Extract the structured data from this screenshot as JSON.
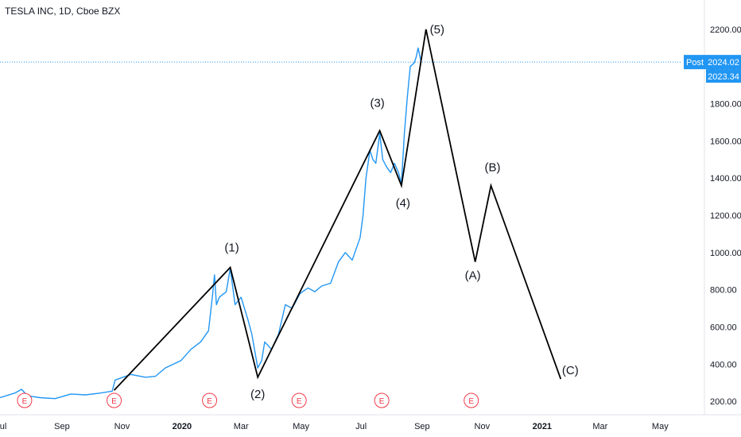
{
  "header": {
    "title": "TESLA INC, 1D, Cboe BZX"
  },
  "price_badges": {
    "post_label": "Post",
    "post_value": "2024.02",
    "last_value": "2023.34"
  },
  "earnings_marker_label": "E",
  "colors": {
    "price_line": "#2196f3",
    "wave_line": "#000000",
    "badge_bg": "#2196f3",
    "earnings": "#f23645"
  },
  "chart_data": {
    "type": "line",
    "y_axis_ticks": [
      "200.00",
      "400.00",
      "600.00",
      "800.00",
      "1000.00",
      "1200.00",
      "1400.00",
      "1600.00",
      "1800.00",
      "2000.00",
      "2200.00"
    ],
    "ylim": [
      60,
      2285
    ],
    "x_axis_ticks": [
      {
        "label": "Jul",
        "x": "2019-07-01"
      },
      {
        "label": "Sep",
        "x": "2019-09-01"
      },
      {
        "label": "Nov",
        "x": "2019-11-01"
      },
      {
        "label": "2020",
        "x": "2020-01-01"
      },
      {
        "label": "Mar",
        "x": "2020-03-01"
      },
      {
        "label": "May",
        "x": "2020-05-01"
      },
      {
        "label": "Jul",
        "x": "2020-07-01"
      },
      {
        "label": "Sep",
        "x": "2020-09-01"
      },
      {
        "label": "Nov",
        "x": "2020-11-01"
      },
      {
        "label": "2021",
        "x": "2021-01-01"
      },
      {
        "label": "Mar",
        "x": "2021-03-01"
      },
      {
        "label": "May",
        "x": "2021-05-01"
      }
    ],
    "xlim": [
      "2019-06-30",
      "2021-06-15"
    ],
    "series": [
      {
        "points": [
          [
            "2019-06-30",
            220
          ],
          [
            "2019-07-15",
            245
          ],
          [
            "2019-07-22",
            265
          ],
          [
            "2019-07-28",
            230
          ],
          [
            "2019-08-10",
            220
          ],
          [
            "2019-08-25",
            215
          ],
          [
            "2019-09-10",
            240
          ],
          [
            "2019-09-25",
            235
          ],
          [
            "2019-10-10",
            245
          ],
          [
            "2019-10-22",
            255
          ],
          [
            "2019-10-25",
            315
          ],
          [
            "2019-11-10",
            345
          ],
          [
            "2019-11-25",
            330
          ],
          [
            "2019-12-05",
            335
          ],
          [
            "2019-12-15",
            380
          ],
          [
            "2019-12-31",
            420
          ],
          [
            "2020-01-10",
            480
          ],
          [
            "2020-01-20",
            520
          ],
          [
            "2020-01-28",
            580
          ],
          [
            "2020-02-01",
            770
          ],
          [
            "2020-02-03",
            880
          ],
          [
            "2020-02-05",
            720
          ],
          [
            "2020-02-08",
            760
          ],
          [
            "2020-02-15",
            790
          ],
          [
            "2020-02-19",
            915
          ],
          [
            "2020-02-24",
            720
          ],
          [
            "2020-03-01",
            760
          ],
          [
            "2020-03-08",
            640
          ],
          [
            "2020-03-12",
            560
          ],
          [
            "2020-03-18",
            380
          ],
          [
            "2020-03-22",
            420
          ],
          [
            "2020-03-25",
            520
          ],
          [
            "2020-04-01",
            480
          ],
          [
            "2020-04-08",
            560
          ],
          [
            "2020-04-15",
            720
          ],
          [
            "2020-04-22",
            700
          ],
          [
            "2020-04-30",
            780
          ],
          [
            "2020-05-08",
            810
          ],
          [
            "2020-05-15",
            790
          ],
          [
            "2020-05-22",
            820
          ],
          [
            "2020-05-31",
            835
          ],
          [
            "2020-06-08",
            950
          ],
          [
            "2020-06-15",
            1000
          ],
          [
            "2020-06-22",
            960
          ],
          [
            "2020-06-30",
            1080
          ],
          [
            "2020-07-03",
            1200
          ],
          [
            "2020-07-06",
            1400
          ],
          [
            "2020-07-10",
            1550
          ],
          [
            "2020-07-13",
            1500
          ],
          [
            "2020-07-16",
            1480
          ],
          [
            "2020-07-20",
            1640
          ],
          [
            "2020-07-23",
            1500
          ],
          [
            "2020-07-27",
            1460
          ],
          [
            "2020-07-31",
            1430
          ],
          [
            "2020-08-04",
            1480
          ],
          [
            "2020-08-08",
            1430
          ],
          [
            "2020-08-11",
            1370
          ],
          [
            "2020-08-14",
            1640
          ],
          [
            "2020-08-17",
            1835
          ],
          [
            "2020-08-20",
            2000
          ],
          [
            "2020-08-24",
            2020
          ],
          [
            "2020-08-26",
            2050
          ],
          [
            "2020-08-28",
            2100
          ],
          [
            "2020-08-31",
            2024
          ]
        ]
      }
    ],
    "wave_path": [
      {
        "label": "",
        "x": "2019-10-24",
        "y": 260
      },
      {
        "label": "(1)",
        "x": "2020-02-19",
        "y": 920
      },
      {
        "label": "(2)",
        "x": "2020-03-18",
        "y": 330
      },
      {
        "label": "(3)",
        "x": "2020-07-20",
        "y": 1655
      },
      {
        "label": "(4)",
        "x": "2020-08-11",
        "y": 1360
      },
      {
        "label": "(5)",
        "x": "2020-09-05",
        "y": 2200
      },
      {
        "label": "(A)",
        "x": "2020-10-25",
        "y": 950
      },
      {
        "label": "(B)",
        "x": "2020-11-10",
        "y": 1360
      },
      {
        "label": "(C)",
        "x": "2021-01-20",
        "y": 320
      }
    ],
    "earnings_dates": [
      "2019-07-25",
      "2019-10-24",
      "2020-01-29",
      "2020-04-29",
      "2020-07-22",
      "2020-10-21"
    ],
    "reference_price": 2024.02
  }
}
